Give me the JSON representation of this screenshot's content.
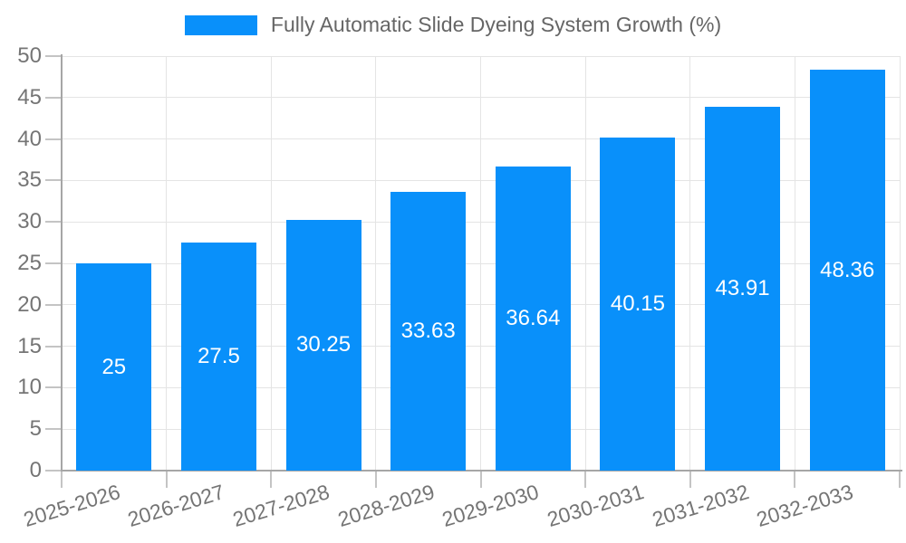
{
  "legend": {
    "label": "Fully Automatic Slide Dyeing System Growth (%)",
    "swatch_color": "#0990fa"
  },
  "colors": {
    "bar": "#0990fa",
    "grid": "#e4e4e4",
    "axis": "#a6a6a6",
    "tick": "#c4c4c4",
    "axis_text": "#757575",
    "value_text": "#ffffff",
    "legend_text": "#666666",
    "background": "#ffffff"
  },
  "chart_data": {
    "type": "bar",
    "title": "Fully Automatic Slide Dyeing System Growth (%)",
    "categories": [
      "2025-2026",
      "2026-2027",
      "2027-2028",
      "2028-2029",
      "2029-2030",
      "2030-2031",
      "2031-2032",
      "2032-2033"
    ],
    "values": [
      25,
      27.5,
      30.25,
      33.63,
      36.64,
      40.15,
      43.91,
      48.36
    ],
    "value_labels": [
      "25",
      "27.5",
      "30.25",
      "33.63",
      "36.64",
      "40.15",
      "43.91",
      "48.36"
    ],
    "xlabel": "",
    "ylabel": "",
    "ylim": [
      0,
      50
    ],
    "ytick_step": 5,
    "ytick_labels": [
      "0",
      "5",
      "10",
      "15",
      "20",
      "25",
      "30",
      "35",
      "40",
      "45",
      "50"
    ],
    "grid": true,
    "legend_position": "top",
    "value_label_position": "inside-center"
  }
}
